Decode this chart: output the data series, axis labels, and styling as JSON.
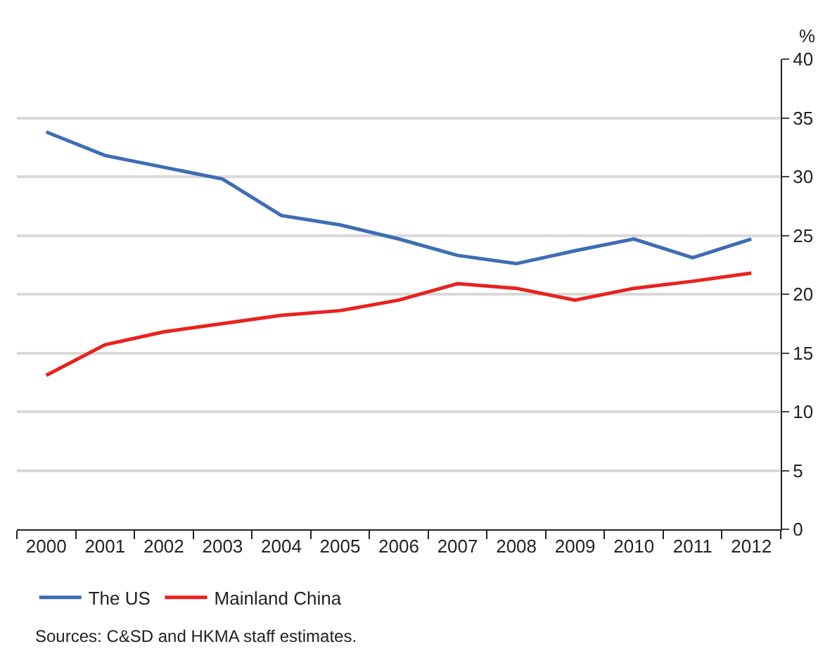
{
  "chart_data": {
    "type": "line",
    "ylabel": "%",
    "categories": [
      "2000",
      "2001",
      "2002",
      "2003",
      "2004",
      "2005",
      "2006",
      "2007",
      "2008",
      "2009",
      "2010",
      "2011",
      "2012"
    ],
    "series": [
      {
        "name": "The US",
        "color": "#3e6db5",
        "values": [
          33.8,
          31.8,
          30.8,
          29.8,
          26.7,
          25.9,
          24.7,
          23.3,
          22.6,
          23.7,
          24.7,
          23.1,
          24.7
        ]
      },
      {
        "name": "Mainland China",
        "color": "#e8231f",
        "values": [
          13.1,
          15.7,
          16.8,
          17.5,
          18.2,
          18.6,
          19.5,
          20.9,
          20.5,
          19.5,
          20.5,
          21.1,
          21.8
        ]
      }
    ],
    "ylim": [
      0,
      40
    ],
    "yticks": [
      0,
      5,
      10,
      15,
      20,
      25,
      30,
      35,
      40
    ],
    "grid": "y",
    "legend": "bottom left",
    "marker": "none",
    "line_style": "solid",
    "annotations": [
      "Sources: C&SD and HKMA staff estimates."
    ]
  }
}
